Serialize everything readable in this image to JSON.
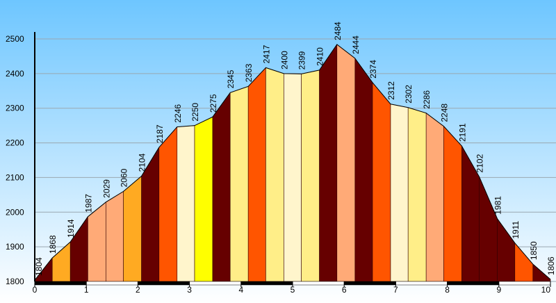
{
  "chart_data": {
    "type": "area",
    "x": [
      0,
      0.34,
      0.69,
      1.03,
      1.38,
      1.72,
      2.07,
      2.41,
      2.76,
      3.1,
      3.45,
      3.79,
      4.14,
      4.48,
      4.83,
      5.17,
      5.52,
      5.86,
      6.21,
      6.55,
      6.9,
      7.24,
      7.59,
      7.93,
      8.28,
      8.62,
      8.97,
      9.31,
      9.66,
      10
    ],
    "values": [
      1804,
      1868,
      1914,
      1987,
      2029,
      2060,
      2104,
      2187,
      2246,
      2250,
      2275,
      2345,
      2363,
      2417,
      2400,
      2399,
      2410,
      2484,
      2444,
      2374,
      2312,
      2302,
      2286,
      2248,
      2191,
      2102,
      1981,
      1911,
      1850,
      1806
    ],
    "band_colors": [
      "#660000",
      "#ffaa22",
      "#660000",
      "#ffaa77",
      "#ffaa77",
      "#ffaa22",
      "#660000",
      "#ff5500",
      "#fff5cc",
      "#ffff00",
      "#660000",
      "#ffee88",
      "#ff5500",
      "#ffee88",
      "#fff5cc",
      "#ffee88",
      "#660000",
      "#ffaa77",
      "#660000",
      "#ff5500",
      "#fff5cc",
      "#ffee88",
      "#ffaa77",
      "#ff5500",
      "#660000",
      "#660000",
      "#660000",
      "#ff5500",
      "#660000"
    ],
    "xlim": [
      0,
      10
    ],
    "ylim": [
      1800,
      2500
    ],
    "xticks": [
      0,
      1,
      2,
      3,
      4,
      5,
      6,
      7,
      8,
      9,
      10
    ],
    "yticks": [
      1800,
      1900,
      2000,
      2100,
      2200,
      2300,
      2400,
      2500
    ],
    "grid": true
  }
}
